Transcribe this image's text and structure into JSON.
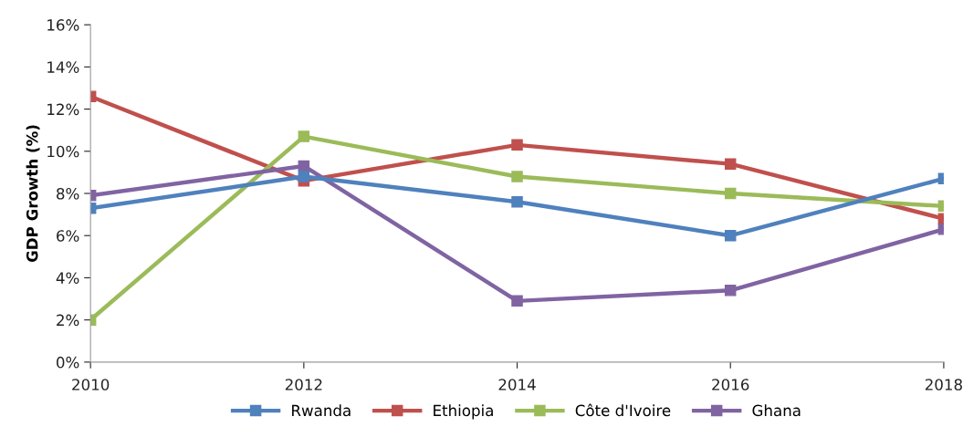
{
  "chart_data": {
    "type": "line",
    "ylabel": "GDP Growth (%)",
    "x": [
      2010,
      2012,
      2014,
      2016,
      2018
    ],
    "series": [
      {
        "name": "Rwanda",
        "color": "#4f81bd",
        "values": [
          7.3,
          8.8,
          7.6,
          6.0,
          8.7
        ]
      },
      {
        "name": "Ethiopia",
        "color": "#c0504d",
        "values": [
          12.6,
          8.6,
          10.3,
          9.4,
          6.8
        ]
      },
      {
        "name": "Côte d'Ivoire",
        "color": "#9bbb59",
        "values": [
          2.0,
          10.7,
          8.8,
          8.0,
          7.4
        ]
      },
      {
        "name": "Ghana",
        "color": "#8064a2",
        "values": [
          7.9,
          9.3,
          2.9,
          3.4,
          6.3
        ]
      }
    ],
    "xlim": [
      2010,
      2018
    ],
    "xticks": [
      2010,
      2012,
      2014,
      2016,
      2018
    ],
    "ylim": [
      0,
      16
    ],
    "yticks": [
      {
        "value": 0,
        "label": "0%"
      },
      {
        "value": 2,
        "label": "2%"
      },
      {
        "value": 4,
        "label": "4%"
      },
      {
        "value": 6,
        "label": "6%"
      },
      {
        "value": 8,
        "label": "8%"
      },
      {
        "value": 10,
        "label": "10%"
      },
      {
        "value": 12,
        "label": "12%"
      },
      {
        "value": 14,
        "label": "14%"
      },
      {
        "value": 16,
        "label": "16%"
      }
    ],
    "grid": false,
    "legend": "bottom",
    "marker": "square",
    "line_style": "solid"
  }
}
